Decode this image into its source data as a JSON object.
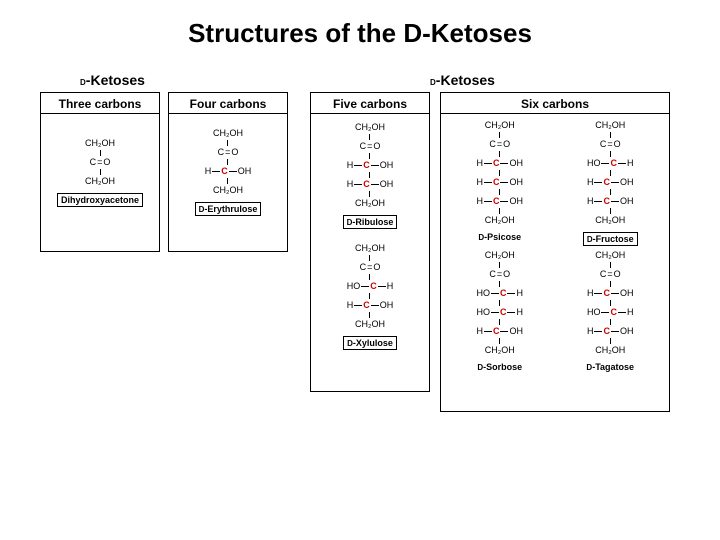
{
  "title": "Structures of the D-Ketoses",
  "section_labels": {
    "left": "D-Ketoses",
    "right": "D-Ketoses"
  },
  "colors": {
    "chiral_c": "#cc0000",
    "border": "#000000",
    "bg": "#ffffff"
  },
  "text_fontsize": 9,
  "title_fontsize": 26,
  "panels": {
    "c3": {
      "header": "Three carbons"
    },
    "c4": {
      "header": "Four carbons"
    },
    "c5": {
      "header": "Five carbons"
    },
    "c6": {
      "header": "Six carbons"
    }
  },
  "molecules": {
    "dha": {
      "name": "Dihydroxyacetone",
      "rows": [
        "CH2OH",
        "C=O",
        "CH2OH"
      ],
      "chiral_rows": []
    },
    "erythrulose": {
      "name": "D-Erythrulose",
      "rows": [
        "CH2OH",
        "C=O",
        "H-C-OH",
        "CH2OH"
      ],
      "chiral_rows": [
        2
      ]
    },
    "ribulose": {
      "name": "D-Ribulose",
      "rows": [
        "CH2OH",
        "C=O",
        "H-C-OH",
        "H-C-OH",
        "CH2OH"
      ],
      "chiral_rows": [
        2,
        3
      ]
    },
    "xylulose": {
      "name": "D-Xylulose",
      "rows": [
        "CH2OH",
        "C=O",
        "HO-C-H",
        "H-C-OH",
        "CH2OH"
      ],
      "chiral_rows": [
        2,
        3
      ]
    },
    "psicose": {
      "name": "D-Psicose",
      "rows": [
        "CH2OH",
        "C=O",
        "H-C-OH",
        "H-C-OH",
        "H-C-OH",
        "CH2OH"
      ],
      "chiral_rows": [
        2,
        3,
        4
      ]
    },
    "fructose": {
      "name": "D-Fructose",
      "rows": [
        "CH2OH",
        "C=O",
        "HO-C-H",
        "H-C-OH",
        "H-C-OH",
        "CH2OH"
      ],
      "chiral_rows": [
        2,
        3,
        4
      ]
    },
    "sorbose": {
      "name": "D-Sorbose",
      "rows": [
        "CH2OH",
        "C=O",
        "HO-C-H",
        "HO-C-H",
        "H-C-OH",
        "CH2OH"
      ],
      "chiral_rows": [
        2,
        3,
        4
      ]
    },
    "tagatose": {
      "name": "D-Tagatose",
      "rows": [
        "CH2OH",
        "C=O",
        "H-C-OH",
        "HO-C-H",
        "H-C-OH",
        "CH2OH"
      ],
      "chiral_rows": [
        2,
        3,
        4
      ]
    }
  }
}
